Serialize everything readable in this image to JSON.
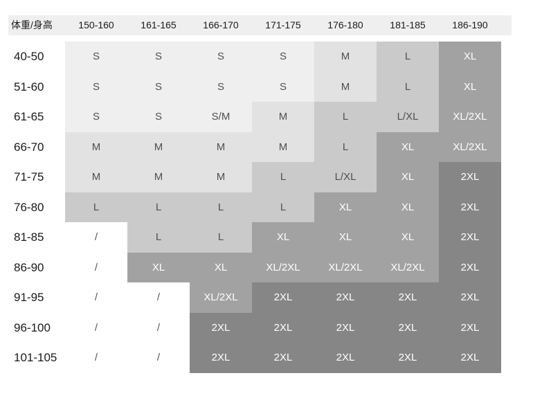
{
  "table": {
    "corner_label": "体重/身高",
    "height_ranges": [
      "150-160",
      "161-165",
      "166-170",
      "171-175",
      "176-180",
      "181-185",
      "186-190"
    ],
    "rows": [
      {
        "weight": "40-50",
        "sizes": [
          "S",
          "S",
          "S",
          "S",
          "M",
          "L",
          "XL"
        ]
      },
      {
        "weight": "51-60",
        "sizes": [
          "S",
          "S",
          "S",
          "S",
          "M",
          "L",
          "XL"
        ]
      },
      {
        "weight": "61-65",
        "sizes": [
          "S",
          "S",
          "S/M",
          "M",
          "L",
          "L/XL",
          "XL/2XL"
        ]
      },
      {
        "weight": "66-70",
        "sizes": [
          "M",
          "M",
          "M",
          "M",
          "L",
          "XL",
          "XL/2XL"
        ]
      },
      {
        "weight": "71-75",
        "sizes": [
          "M",
          "M",
          "M",
          "L",
          "L/XL",
          "XL",
          "2XL"
        ]
      },
      {
        "weight": "76-80",
        "sizes": [
          "L",
          "L",
          "L",
          "L",
          "XL",
          "XL",
          "2XL"
        ]
      },
      {
        "weight": "81-85",
        "sizes": [
          "/",
          "L",
          "L",
          "XL",
          "XL",
          "XL",
          "2XL"
        ]
      },
      {
        "weight": "86-90",
        "sizes": [
          "/",
          "XL",
          "XL",
          "XL/2XL",
          "XL/2XL",
          "XL/2XL",
          "2XL"
        ]
      },
      {
        "weight": "91-95",
        "sizes": [
          "/",
          "/",
          "XL/2XL",
          "2XL",
          "2XL",
          "2XL",
          "2XL"
        ]
      },
      {
        "weight": "96-100",
        "sizes": [
          "/",
          "/",
          "2XL",
          "2XL",
          "2XL",
          "2XL",
          "2XL"
        ]
      },
      {
        "weight": "101-105",
        "sizes": [
          "/",
          "/",
          "2XL",
          "2XL",
          "2XL",
          "2XL",
          "2XL"
        ]
      }
    ]
  },
  "colors": {
    "header_bg": "#efefef",
    "text_dark": "#1a1a1a",
    "size_fill": {
      "S": "#efefef",
      "S/M": "#efefef",
      "M": "#e2e2e2",
      "L": "#cacaca",
      "L/XL": "#cacaca",
      "XL": "#a2a2a2",
      "XL/2XL": "#a2a2a2",
      "2XL": "#868686",
      "/": "#ffffff"
    },
    "size_text": {
      "light": "#4f4f4f",
      "dark": "#ffffff",
      "slash": "#555555"
    },
    "override_fills": [
      {
        "row": 0,
        "col": 6,
        "fill": "#a2a2a2"
      },
      {
        "row": 1,
        "col": 6,
        "fill": "#a2a2a2"
      },
      {
        "row": 2,
        "col": 6,
        "fill": "#a2a2a2"
      },
      {
        "row": 3,
        "col": 6,
        "fill": "#a2a2a2"
      }
    ]
  }
}
